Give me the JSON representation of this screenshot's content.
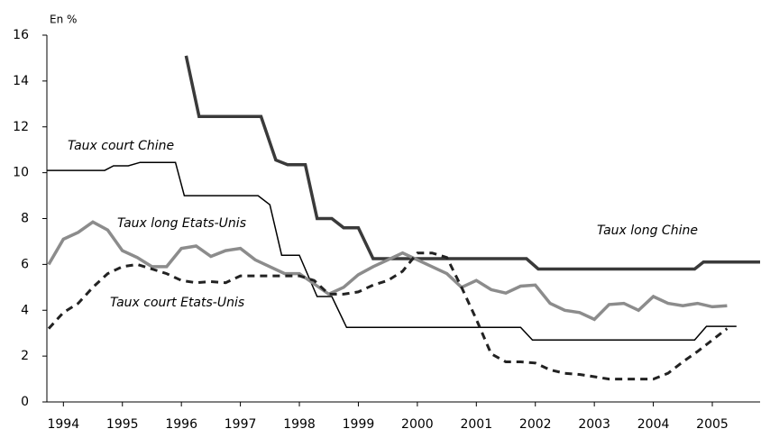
{
  "chart_data": {
    "type": "line",
    "y_label": "En %",
    "xlim": [
      1993.72,
      2005.81
    ],
    "xticks": [
      1994,
      1995,
      1996,
      1997,
      1998,
      1999,
      2000,
      2001,
      2002,
      2003,
      2004,
      2005
    ],
    "ylim": [
      0,
      16
    ],
    "yticks": [
      0,
      2,
      4,
      6,
      8,
      10,
      12,
      14,
      16
    ],
    "series": [
      {
        "name": "Taux long Chine",
        "color": "#3a3a3a",
        "style": "solid",
        "x": [
          1996.08,
          1996.3,
          1997.35,
          1997.6,
          1997.8,
          1998.1,
          1998.3,
          1998.55,
          1998.75,
          1999.0,
          1999.25,
          2001.85,
          2002.05,
          2004.7,
          2004.85,
          2005.81
        ],
        "values": [
          15.1,
          12.45,
          12.45,
          10.55,
          10.35,
          10.35,
          8.0,
          8.0,
          7.6,
          7.6,
          6.25,
          6.25,
          5.8,
          5.8,
          6.1,
          6.1
        ]
      },
      {
        "name": "Taux court Chine",
        "color": "#000000",
        "style": "thin",
        "x": [
          1993.72,
          1994.7,
          1994.85,
          1995.1,
          1995.3,
          1995.9,
          1996.05,
          1997.3,
          1997.5,
          1997.7,
          1998.0,
          1998.3,
          1998.55,
          1998.8,
          2001.75,
          2001.95,
          2004.7,
          2004.9,
          2005.41
        ],
        "values": [
          10.1,
          10.1,
          10.3,
          10.3,
          10.45,
          10.45,
          9.0,
          9.0,
          8.6,
          6.4,
          6.4,
          4.6,
          4.6,
          3.25,
          3.25,
          2.7,
          2.7,
          3.3,
          3.3
        ]
      },
      {
        "name": "Taux long Etats-Unis",
        "color": "#8c8c8c",
        "style": "thick",
        "x": [
          1993.75,
          1994,
          1994.25,
          1994.5,
          1994.75,
          1995,
          1995.25,
          1995.5,
          1995.75,
          1996,
          1996.25,
          1996.5,
          1996.75,
          1997,
          1997.25,
          1997.5,
          1997.75,
          1998,
          1998.25,
          1998.5,
          1998.75,
          1999,
          1999.25,
          1999.5,
          1999.75,
          2000,
          2000.25,
          2000.5,
          2000.75,
          2001,
          2001.25,
          2001.5,
          2001.75,
          2002,
          2002.25,
          2002.5,
          2002.75,
          2003,
          2003.25,
          2003.5,
          2003.75,
          2004,
          2004.25,
          2004.5,
          2004.75,
          2005,
          2005.25
        ],
        "values": [
          6.0,
          7.1,
          7.4,
          7.85,
          7.5,
          6.6,
          6.3,
          5.9,
          5.9,
          6.7,
          6.8,
          6.35,
          6.6,
          6.7,
          6.2,
          5.9,
          5.6,
          5.6,
          5.15,
          4.7,
          5.0,
          5.55,
          5.9,
          6.2,
          6.5,
          6.2,
          5.9,
          5.6,
          5.0,
          5.3,
          4.9,
          4.75,
          5.05,
          5.1,
          4.3,
          4.0,
          3.9,
          3.6,
          4.25,
          4.3,
          4.0,
          4.6,
          4.3,
          4.2,
          4.3,
          4.15,
          4.2
        ]
      },
      {
        "name": "Taux court Etats-Unis",
        "color": "#222222",
        "style": "dashed",
        "x": [
          1993.75,
          1994,
          1994.25,
          1994.5,
          1994.75,
          1995,
          1995.25,
          1995.5,
          1995.75,
          1996,
          1996.25,
          1996.5,
          1996.75,
          1997,
          1997.25,
          1997.5,
          1997.75,
          1998,
          1998.25,
          1998.5,
          1998.75,
          1999,
          1999.25,
          1999.5,
          1999.75,
          2000,
          2000.25,
          2000.5,
          2000.75,
          2001,
          2001.25,
          2001.5,
          2001.75,
          2002,
          2002.25,
          2002.5,
          2002.75,
          2003,
          2003.25,
          2003.5,
          2003.75,
          2004,
          2004.25,
          2004.5,
          2004.75,
          2005,
          2005.25
        ],
        "values": [
          3.2,
          3.9,
          4.3,
          5.0,
          5.6,
          5.9,
          6.0,
          5.8,
          5.6,
          5.3,
          5.2,
          5.25,
          5.2,
          5.5,
          5.5,
          5.5,
          5.5,
          5.5,
          5.3,
          4.7,
          4.7,
          4.8,
          5.1,
          5.3,
          5.7,
          6.5,
          6.5,
          6.3,
          5.0,
          3.6,
          2.1,
          1.75,
          1.75,
          1.7,
          1.4,
          1.25,
          1.2,
          1.1,
          1.0,
          1.0,
          1.0,
          1.0,
          1.25,
          1.75,
          2.2,
          2.7,
          3.2
        ]
      }
    ]
  }
}
